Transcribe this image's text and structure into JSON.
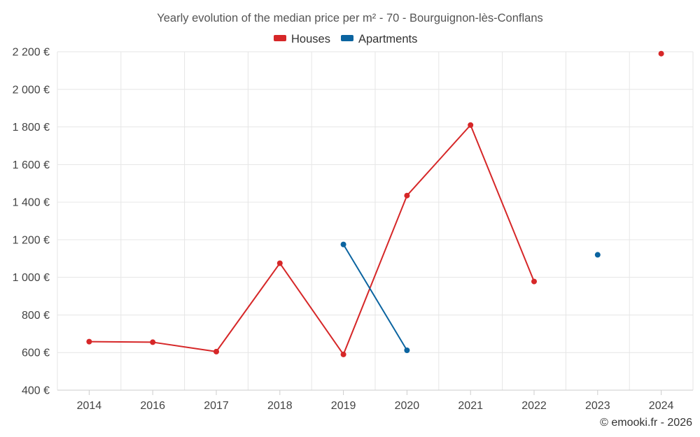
{
  "chart_data": {
    "type": "line",
    "title": "Yearly evolution of the median price per m² - 70 - Bourguignon-lès-Conflans",
    "categories": [
      "2014",
      "2016",
      "2017",
      "2018",
      "2019",
      "2020",
      "2021",
      "2022",
      "2023",
      "2024"
    ],
    "y_ticks": [
      "2 200 €",
      "2 000 €",
      "1 800 €",
      "1 600 €",
      "1 400 €",
      "1 200 €",
      "1 000 €",
      "800 €",
      "600 €",
      "400 €"
    ],
    "ylim": [
      400,
      2200
    ],
    "legend_position": "top-center",
    "series": [
      {
        "name": "Houses",
        "color": "#d62728",
        "values": [
          658,
          655,
          605,
          1075,
          590,
          1435,
          1810,
          978,
          null,
          2190
        ]
      },
      {
        "name": "Apartments",
        "color": "#0b64a0",
        "values": [
          null,
          null,
          null,
          null,
          1175,
          612,
          null,
          null,
          1120,
          null
        ]
      }
    ],
    "credit": "© emooki.fr - 2026"
  }
}
